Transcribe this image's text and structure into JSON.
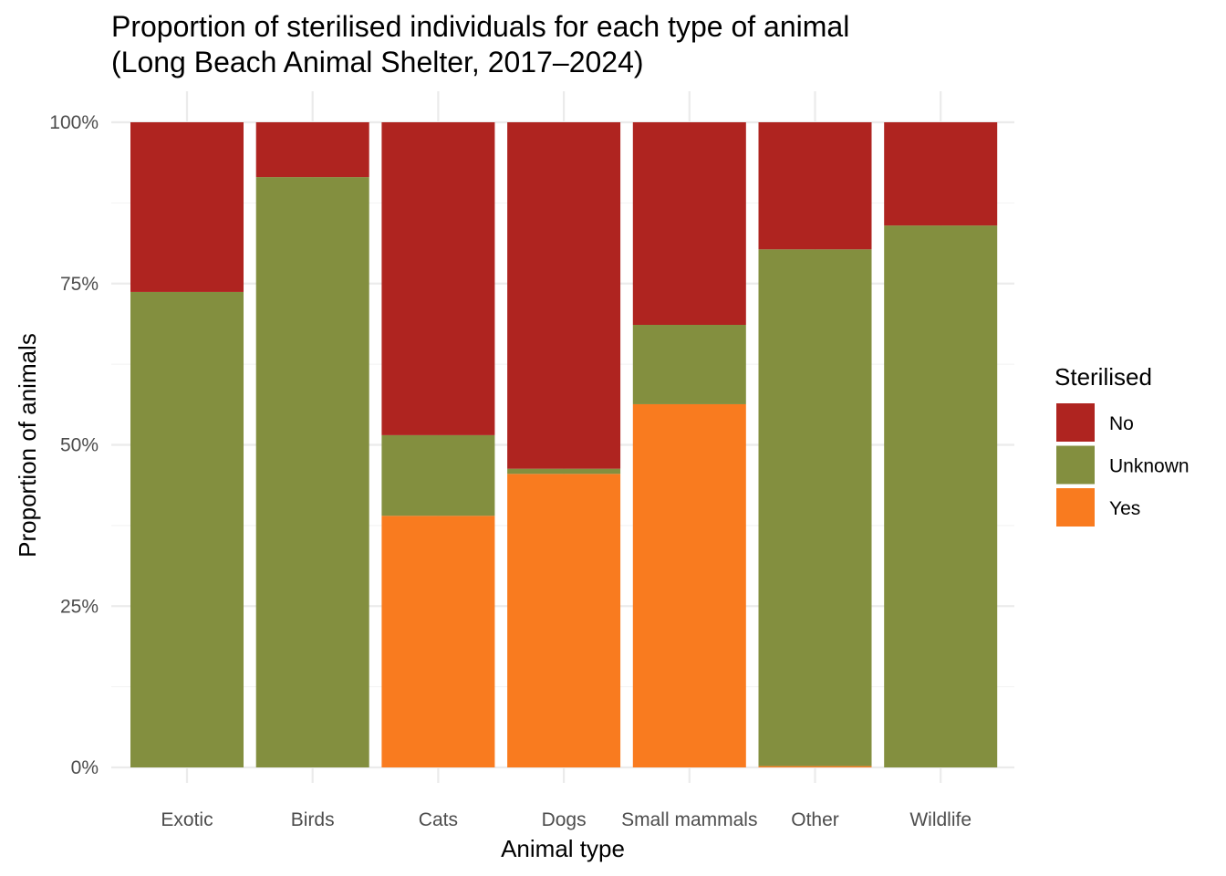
{
  "chart_data": {
    "type": "bar",
    "stacked": true,
    "title": "Proportion of sterilised individuals for each type of animal",
    "subtitle": "(Long Beach Animal Shelter, 2017–2024)",
    "xlabel": "Animal type",
    "ylabel": "Proportion of animals",
    "ylim": [
      0,
      1
    ],
    "yticks": [
      0,
      0.25,
      0.5,
      0.75,
      1.0
    ],
    "ytick_labels": [
      "0%",
      "25%",
      "50%",
      "75%",
      "100%"
    ],
    "grid": true,
    "categories": [
      "Exotic",
      "Birds",
      "Cats",
      "Dogs",
      "Small mammals",
      "Other",
      "Wildlife"
    ],
    "series": [
      {
        "name": "Yes",
        "color": "#F97B1F",
        "values": [
          0.0,
          0.0,
          0.39,
          0.455,
          0.563,
          0.002,
          0.0
        ]
      },
      {
        "name": "Unknown",
        "color": "#838F3F",
        "values": [
          0.737,
          0.915,
          0.125,
          0.008,
          0.123,
          0.801,
          0.84
        ]
      },
      {
        "name": "No",
        "color": "#AF2420",
        "values": [
          0.263,
          0.085,
          0.485,
          0.537,
          0.314,
          0.197,
          0.16
        ]
      }
    ],
    "legend": {
      "title": "Sterilised",
      "position": "right",
      "entries": [
        "No",
        "Unknown",
        "Yes"
      ]
    }
  }
}
